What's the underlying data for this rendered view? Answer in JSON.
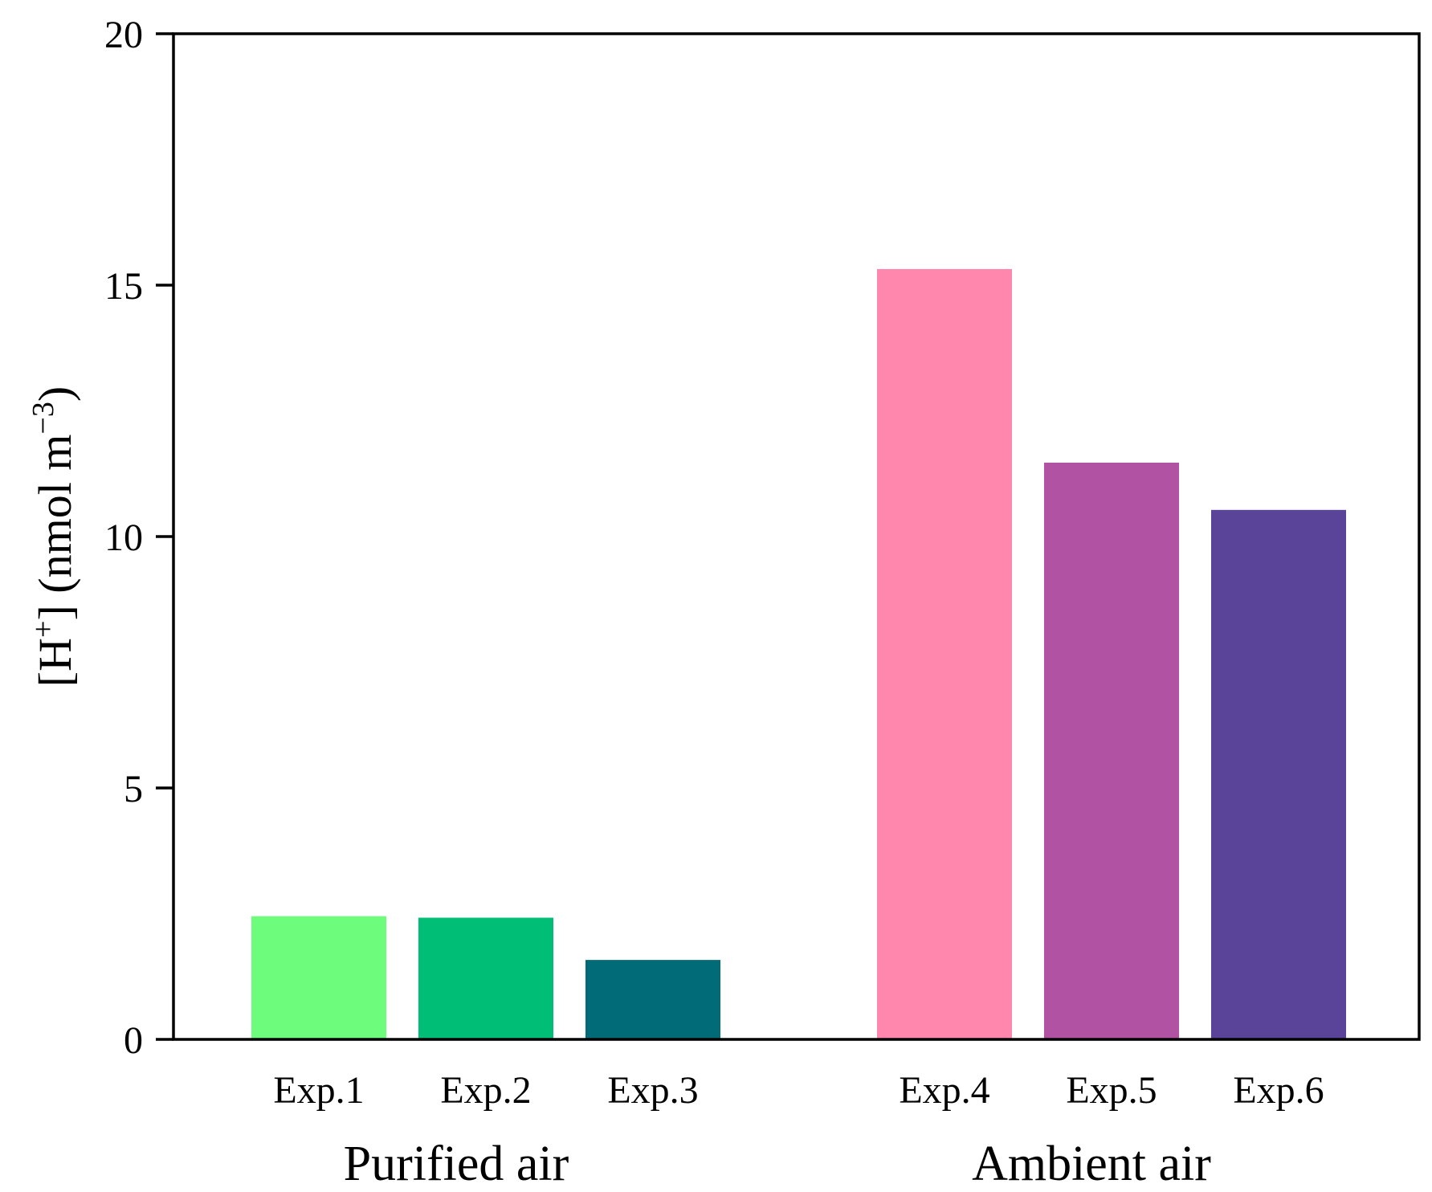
{
  "chart_data": {
    "type": "bar",
    "title": "",
    "xlabel": "",
    "ylabel": {
      "prefix": "[H",
      "superscript": "+",
      "middle": "] (nmol m",
      "unit_superscript": "−3",
      "suffix": ")"
    },
    "ylim": [
      0,
      20
    ],
    "yticks": [
      0,
      5,
      10,
      15,
      20
    ],
    "categories": [
      "Exp.1",
      "Exp.2",
      "Exp.3",
      "Exp.4",
      "Exp.5",
      "Exp.6"
    ],
    "values": [
      2.45,
      2.42,
      1.58,
      15.32,
      11.47,
      10.53
    ],
    "colors": [
      "#6dfc7b",
      "#00be76",
      "#016c77",
      "#ff87ae",
      "#b152a3",
      "#5a4499"
    ],
    "groups": [
      {
        "label": "Purified air",
        "categories": [
          "Exp.1",
          "Exp.2",
          "Exp.3"
        ]
      },
      {
        "label": "Ambient air",
        "categories": [
          "Exp.4",
          "Exp.5",
          "Exp.6"
        ]
      }
    ],
    "grid": false,
    "legend": "none"
  }
}
